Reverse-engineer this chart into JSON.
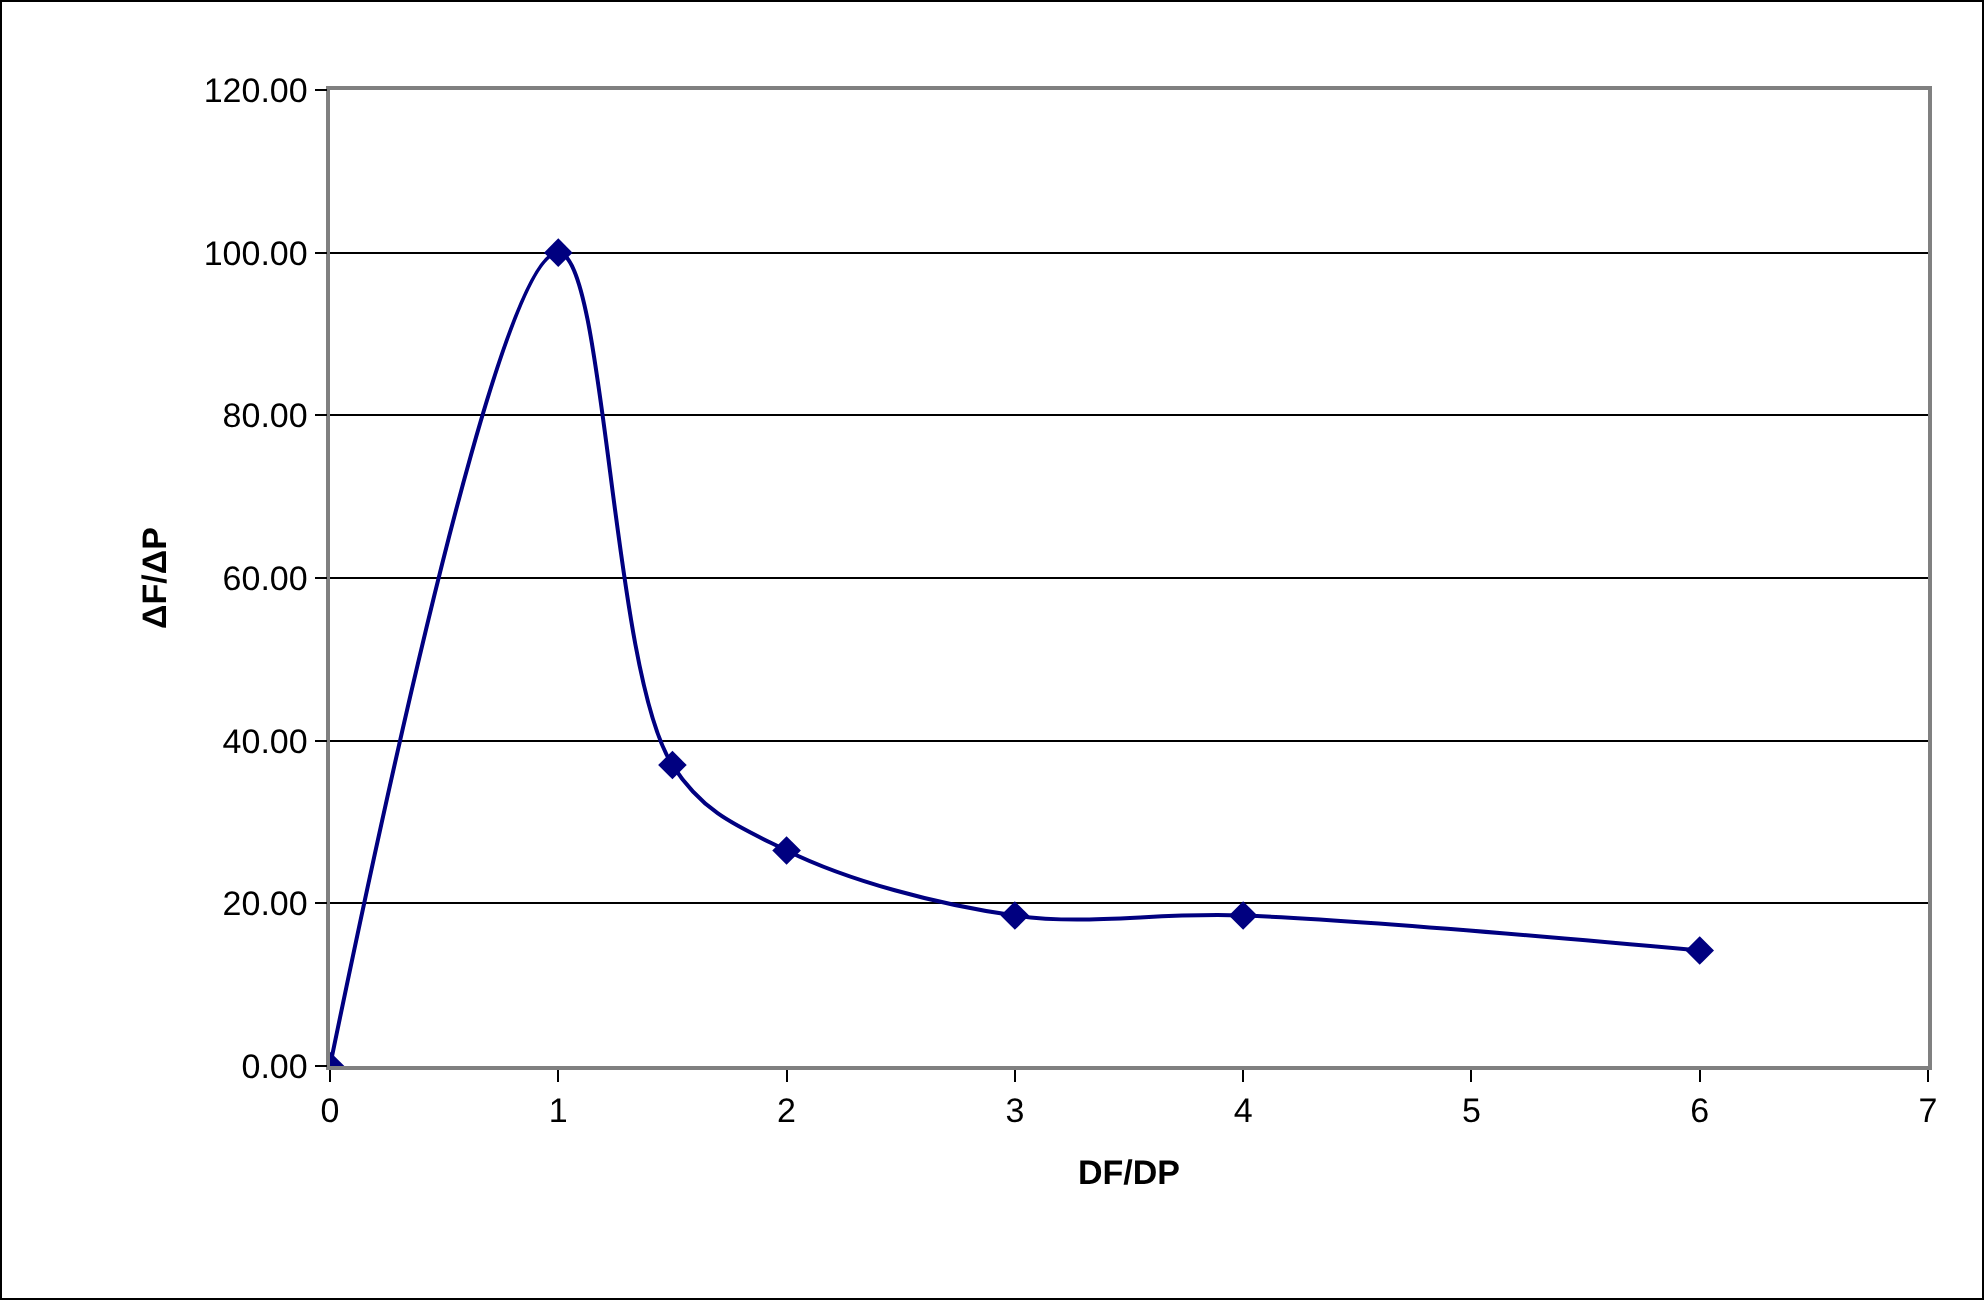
{
  "chart_data": {
    "type": "line",
    "xlabel": "DF/DP",
    "ylabel": "ΔF/ΔP",
    "x": [
      0,
      1,
      1.5,
      2,
      3,
      4,
      6
    ],
    "series": [
      {
        "color": "#000080",
        "values": [
          0,
          100,
          37,
          26.5,
          18.5,
          18.5,
          14.2
        ]
      }
    ],
    "xlim": [
      0,
      7
    ],
    "xticks": [
      0,
      1,
      2,
      3,
      4,
      5,
      6,
      7
    ],
    "ylim": [
      0,
      120
    ],
    "yticks": [
      {
        "value": 0,
        "label": "0.00"
      },
      {
        "value": 20,
        "label": "20.00"
      },
      {
        "value": 40,
        "label": "40.00"
      },
      {
        "value": 60,
        "label": "60.00"
      },
      {
        "value": 80,
        "label": "80.00"
      },
      {
        "value": 100,
        "label": "100.00"
      },
      {
        "value": 120,
        "label": "120.00"
      }
    ],
    "grid": "y",
    "legend": false,
    "marker": "diamond",
    "line_style": "solid"
  }
}
